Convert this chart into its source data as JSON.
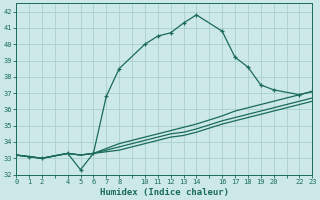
{
  "xlabel": "Humidex (Indice chaleur)",
  "bg_color": "#cce8e8",
  "grid_color": "#aacfcf",
  "line_color": "#1a6b5a",
  "xlim": [
    0,
    23
  ],
  "ylim": [
    32,
    42.5
  ],
  "xticks_all": [
    0,
    1,
    2,
    3,
    4,
    5,
    6,
    7,
    8,
    9,
    10,
    11,
    12,
    13,
    14,
    15,
    16,
    17,
    18,
    19,
    20,
    21,
    22,
    23
  ],
  "xtick_labels": {
    "0": "0",
    "1": "1",
    "2": "2",
    "3": "",
    "4": "4",
    "5": "5",
    "6": "6",
    "7": "7",
    "8": "8",
    "9": "",
    "10": "10",
    "11": "11",
    "12": "12",
    "13": "13",
    "14": "14",
    "15": "",
    "16": "16",
    "17": "17",
    "18": "18",
    "19": "19",
    "20": "20",
    "21": "",
    "22": "22",
    "23": "23"
  },
  "yticks": [
    32,
    33,
    34,
    35,
    36,
    37,
    38,
    39,
    40,
    41,
    42
  ],
  "line1_x": [
    0,
    1,
    2,
    4,
    5,
    6,
    7,
    8,
    10,
    11,
    12,
    13,
    14,
    16,
    17,
    18,
    19,
    20,
    22,
    23
  ],
  "line1_y": [
    33.2,
    33.1,
    33.0,
    33.3,
    32.3,
    33.3,
    36.8,
    38.5,
    40.0,
    40.5,
    40.7,
    41.3,
    41.8,
    40.8,
    39.2,
    38.6,
    37.5,
    37.2,
    36.9,
    37.1
  ],
  "line2_x": [
    0,
    1,
    2,
    4,
    5,
    6,
    7,
    8,
    10,
    11,
    12,
    13,
    14,
    16,
    17,
    18,
    19,
    20,
    22,
    23
  ],
  "line2_y": [
    33.2,
    33.1,
    33.0,
    33.3,
    33.2,
    33.3,
    33.6,
    33.9,
    34.3,
    34.5,
    34.7,
    34.9,
    35.1,
    35.6,
    35.9,
    36.1,
    36.3,
    36.5,
    36.9,
    37.1
  ],
  "line3_x": [
    0,
    1,
    2,
    4,
    5,
    6,
    7,
    8,
    10,
    11,
    12,
    13,
    14,
    16,
    17,
    18,
    19,
    20,
    22,
    23
  ],
  "line3_y": [
    33.2,
    33.1,
    33.0,
    33.3,
    33.2,
    33.3,
    33.5,
    33.7,
    34.1,
    34.3,
    34.5,
    34.6,
    34.8,
    35.3,
    35.5,
    35.7,
    35.9,
    36.1,
    36.5,
    36.7
  ],
  "line4_x": [
    0,
    1,
    2,
    4,
    5,
    6,
    7,
    8,
    10,
    11,
    12,
    13,
    14,
    16,
    17,
    18,
    19,
    20,
    22,
    23
  ],
  "line4_y": [
    33.2,
    33.1,
    33.0,
    33.3,
    33.2,
    33.3,
    33.4,
    33.5,
    33.9,
    34.1,
    34.3,
    34.4,
    34.6,
    35.1,
    35.3,
    35.5,
    35.7,
    35.9,
    36.3,
    36.5
  ]
}
